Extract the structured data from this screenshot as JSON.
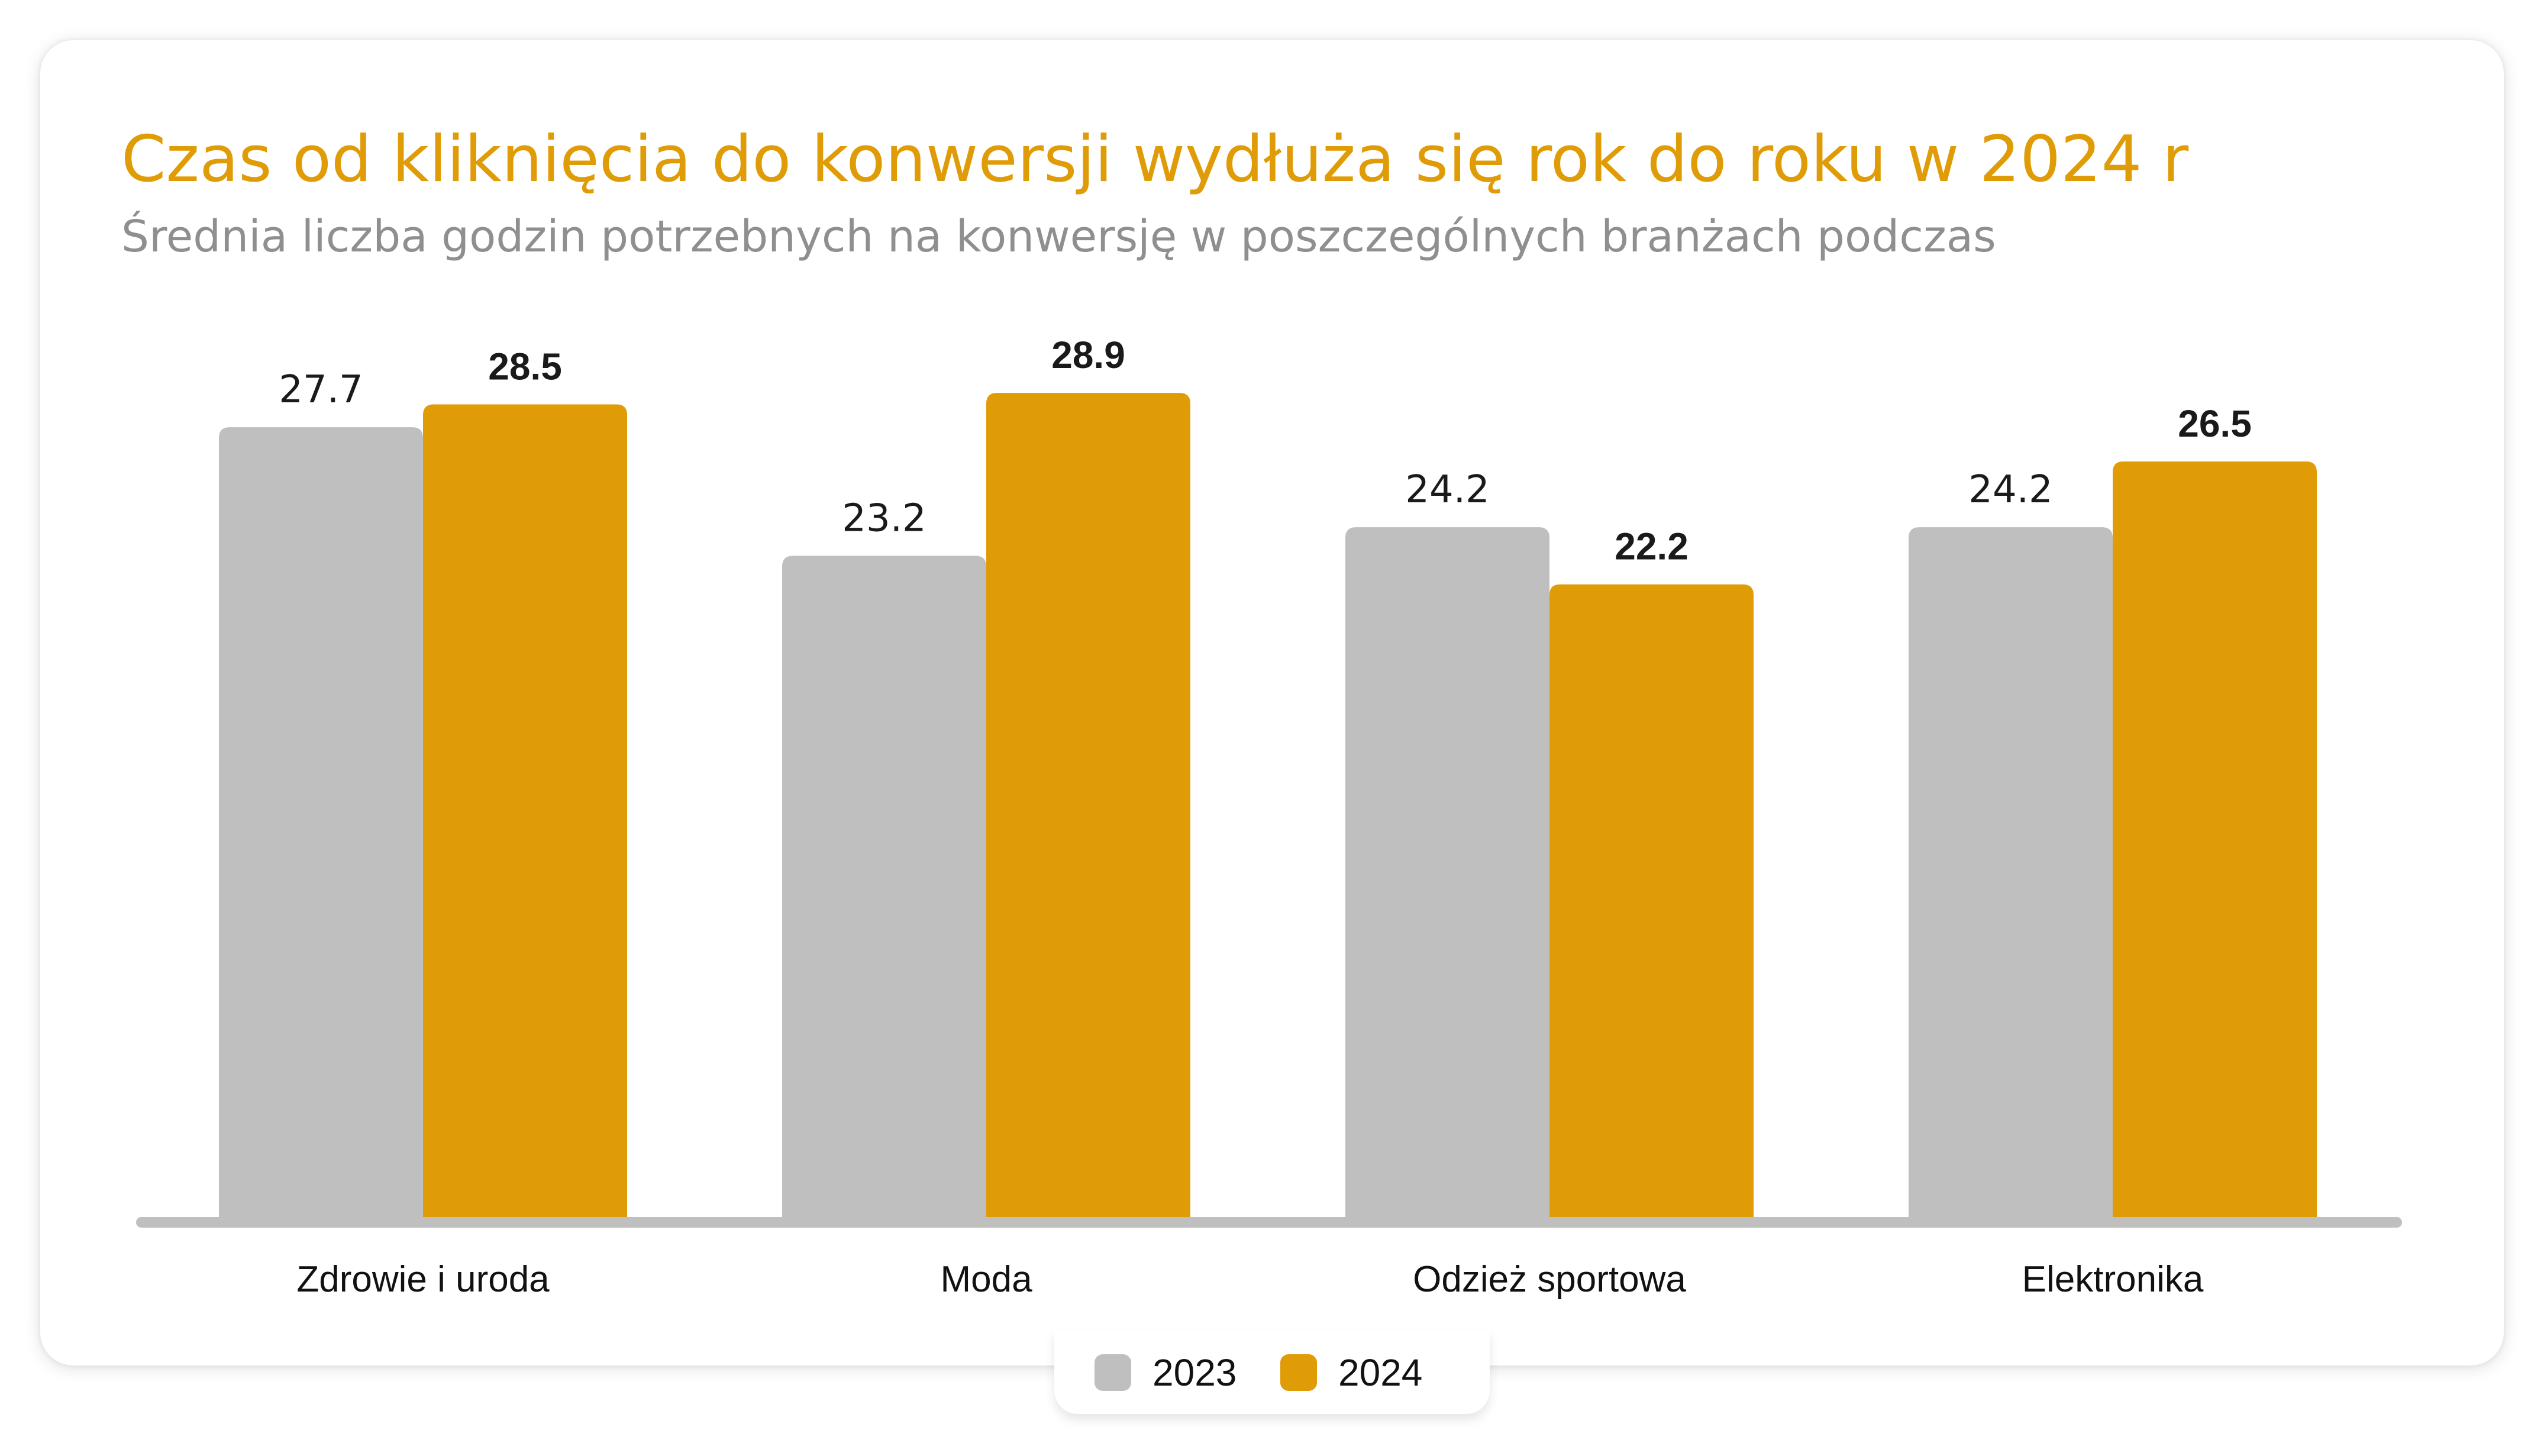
{
  "header": {
    "title": "Czas od kliknięcia do konwersji wydłuża się rok do roku w 2024 r",
    "subtitle": "Średnia liczba godzin potrzebnych na konwersję w poszczególnych branżach podczas"
  },
  "colors": {
    "accent": "#E09C07",
    "series_2023": "#BFBFBF",
    "series_2024": "#E09C07",
    "axis": "#BFBFBF"
  },
  "legend": {
    "items": [
      {
        "label": "2023",
        "color": "#BFBFBF"
      },
      {
        "label": "2024",
        "color": "#E09C07"
      }
    ]
  },
  "chart_data": {
    "type": "bar",
    "title": "Czas od kliknięcia do konwersji wydłuża się rok do roku w 2024 r",
    "subtitle": "Średnia liczba godzin potrzebnych na konwersję w poszczególnych branżach podczas",
    "categories": [
      "Zdrowie i uroda",
      "Moda",
      "Odzież sportowa",
      "Elektronika"
    ],
    "series": [
      {
        "name": "2023",
        "values": [
          27.7,
          23.2,
          24.2,
          24.2
        ],
        "labels": [
          "27.7",
          "23.2",
          "24.2",
          "24.2"
        ],
        "color": "#BFBFBF"
      },
      {
        "name": "2024",
        "values": [
          28.5,
          28.9,
          22.2,
          26.5
        ],
        "labels": [
          "28.5",
          "28.9",
          "22.2",
          "26.5"
        ],
        "color": "#E09C07"
      }
    ],
    "xlabel": "",
    "ylabel": "",
    "ylim": [
      0,
      35
    ],
    "grid": false,
    "y_axis_visible": false,
    "data_labels": true,
    "legend_position": "bottom-center"
  }
}
